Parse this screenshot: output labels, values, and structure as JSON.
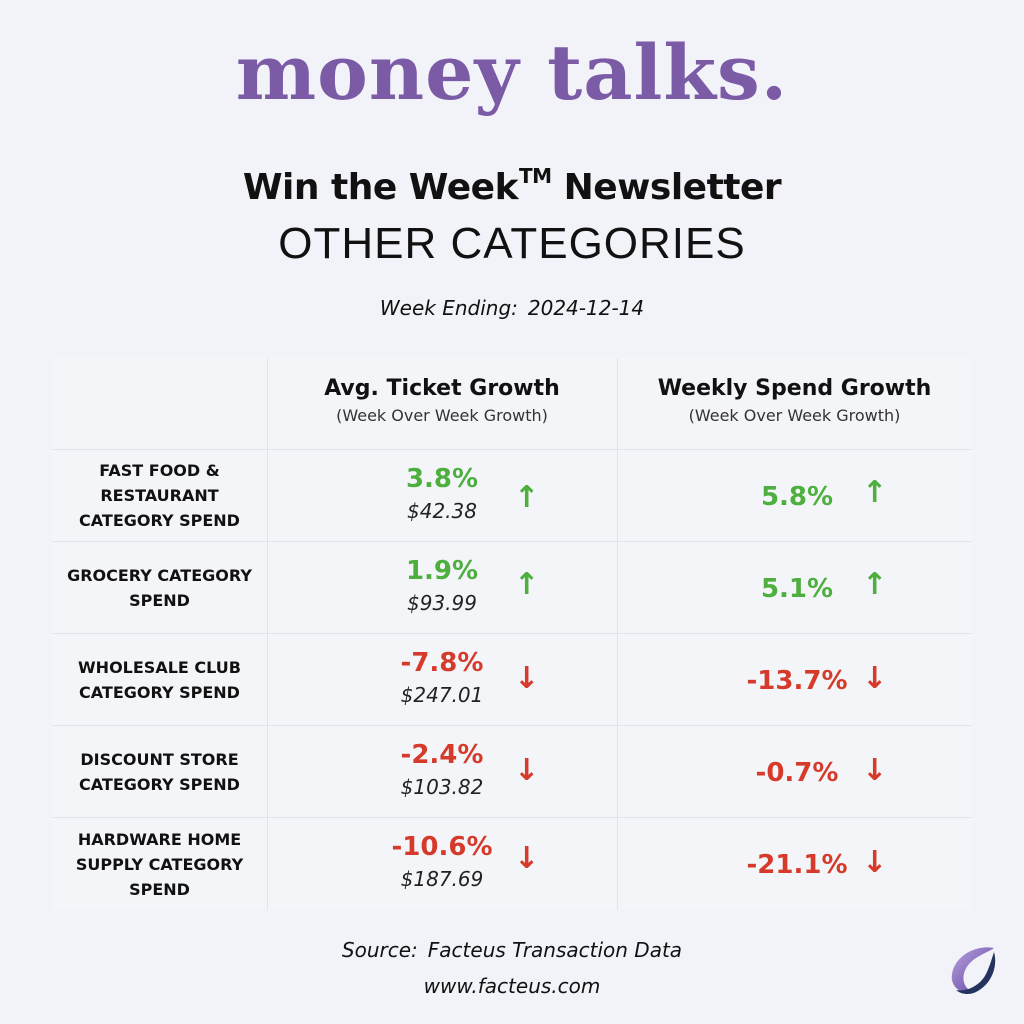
{
  "brand": "money talks.",
  "newsletter": {
    "title": "Win the Week",
    "tm": "TM",
    "suffix": "Newsletter"
  },
  "category": "OTHER CATEGORIES",
  "week": {
    "label": "Week Ending:",
    "date": "2024-12-14"
  },
  "columns": [
    {
      "title": "Avg. Ticket Growth",
      "subtitle": "(Week Over Week Growth)"
    },
    {
      "title": "Weekly Spend Growth",
      "subtitle": "(Week Over Week Growth)"
    }
  ],
  "rows": [
    {
      "label": "FAST FOOD & RESTAURANT CATEGORY SPEND",
      "avg_pct": "3.8%",
      "avg_amt": "$42.38",
      "avg_dir": "up",
      "wk_pct": "5.8%",
      "wk_dir": "up"
    },
    {
      "label": "GROCERY CATEGORY SPEND",
      "avg_pct": "1.9%",
      "avg_amt": "$93.99",
      "avg_dir": "up",
      "wk_pct": "5.1%",
      "wk_dir": "up"
    },
    {
      "label": "WHOLESALE CLUB CATEGORY SPEND",
      "avg_pct": "-7.8%",
      "avg_amt": "$247.01",
      "avg_dir": "down",
      "wk_pct": "-13.7%",
      "wk_dir": "down"
    },
    {
      "label": "DISCOUNT STORE CATEGORY SPEND",
      "avg_pct": "-2.4%",
      "avg_amt": "$103.82",
      "avg_dir": "down",
      "wk_pct": "-0.7%",
      "wk_dir": "down"
    },
    {
      "label": "HARDWARE HOME SUPPLY CATEGORY SPEND",
      "avg_pct": "-10.6%",
      "avg_amt": "$187.69",
      "avg_dir": "down",
      "wk_pct": "-21.1%",
      "wk_dir": "down"
    }
  ],
  "source": {
    "label": "Source:",
    "name": "Facteus Transaction Data"
  },
  "website": "www.facteus.com",
  "colors": {
    "brand": "#7b5aa6",
    "up": "#4caf3e",
    "down": "#d53a2b",
    "background": "#f1f3f8"
  },
  "icons": {
    "up": "arrow-up-icon",
    "down": "arrow-down-icon",
    "logo": "facteus-logo-icon"
  }
}
